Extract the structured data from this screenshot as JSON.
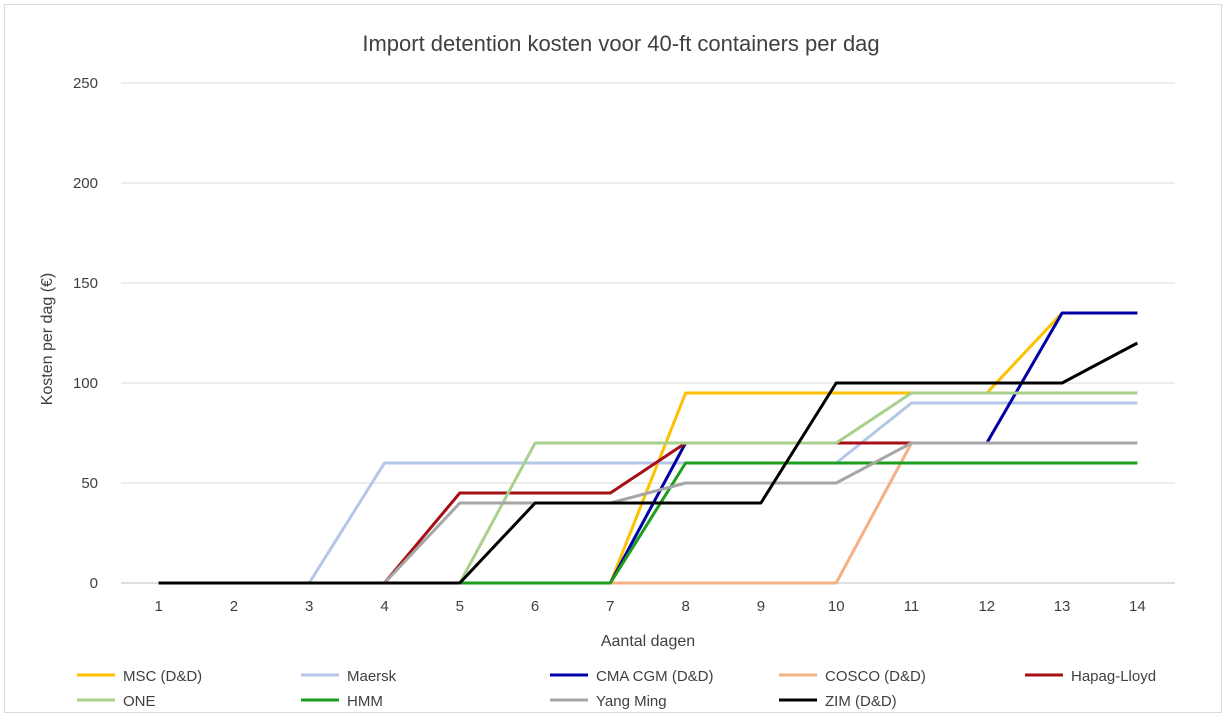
{
  "chart_data": {
    "type": "line",
    "title": "Import detention kosten voor 40-ft containers per dag",
    "xlabel": "Aantal dagen",
    "ylabel": "Kosten per dag (€)",
    "x": [
      1,
      2,
      3,
      4,
      5,
      6,
      7,
      8,
      9,
      10,
      11,
      12,
      13,
      14
    ],
    "x_tick_labels": [
      "1",
      "2",
      "3",
      "4",
      "5",
      "6",
      "7",
      "8",
      "9",
      "10",
      "11",
      "12",
      "13",
      "14"
    ],
    "y_tick_labels": [
      "0",
      "50",
      "100",
      "150",
      "200",
      "250"
    ],
    "ylim": [
      0,
      250
    ],
    "grid": "horizontal",
    "legend_position": "bottom",
    "series": [
      {
        "name": "MSC (D&D)",
        "color": "#FFC000",
        "values": [
          0,
          0,
          0,
          0,
          0,
          0,
          0,
          95,
          95,
          95,
          95,
          95,
          135,
          135
        ]
      },
      {
        "name": "Maersk",
        "color": "#B4C7E7",
        "values": [
          0,
          0,
          0,
          60,
          60,
          60,
          60,
          60,
          60,
          60,
          90,
          90,
          90,
          90
        ]
      },
      {
        "name": "CMA CGM (D&D)",
        "color": "#0000A8",
        "values": [
          0,
          0,
          0,
          0,
          0,
          0,
          0,
          70,
          null,
          null,
          null,
          70,
          135,
          135
        ]
      },
      {
        "name": "COSCO (D&D)",
        "color": "#F4B183",
        "values": [
          0,
          0,
          0,
          0,
          0,
          0,
          0,
          0,
          0,
          0,
          70,
          70,
          70,
          70
        ]
      },
      {
        "name": "Hapag-Lloyd",
        "color": "#A50F15",
        "values": [
          0,
          0,
          0,
          0,
          45,
          45,
          45,
          70,
          null,
          70,
          70,
          null,
          null,
          null
        ]
      },
      {
        "name": "ONE",
        "color": "#A9D18E",
        "values": [
          0,
          0,
          0,
          0,
          0,
          70,
          70,
          70,
          70,
          70,
          95,
          95,
          95,
          95
        ]
      },
      {
        "name": "HMM",
        "color": "#1E9E1E",
        "values": [
          0,
          0,
          0,
          0,
          0,
          0,
          0,
          60,
          60,
          60,
          60,
          60,
          60,
          60
        ]
      },
      {
        "name": "Yang Ming",
        "color": "#A6A6A6",
        "values": [
          0,
          0,
          0,
          0,
          40,
          40,
          40,
          50,
          50,
          50,
          70,
          70,
          70,
          70
        ]
      },
      {
        "name": "ZIM (D&D)",
        "color": "#000000",
        "values": [
          0,
          0,
          0,
          0,
          0,
          40,
          40,
          40,
          40,
          100,
          100,
          100,
          100,
          120
        ]
      }
    ]
  }
}
